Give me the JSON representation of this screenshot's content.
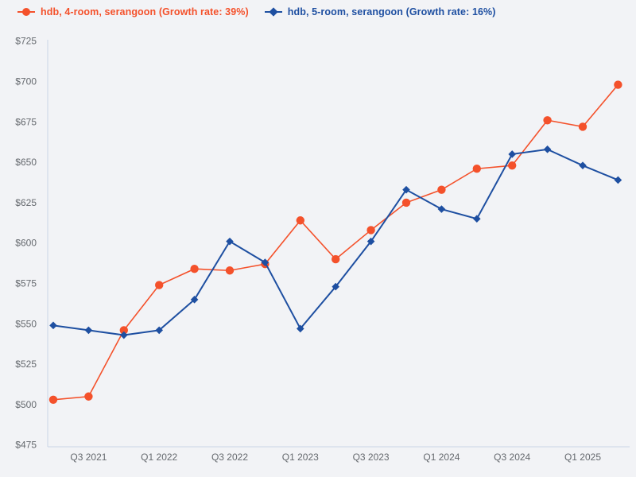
{
  "legend": [
    {
      "label": "hdb, 4-room, serangoon (Growth rate: 39%)",
      "color": "#f4512b",
      "marker": "circle"
    },
    {
      "label": "hdb, 5-room, serangoon (Growth rate: 16%)",
      "color": "#1e4fa1",
      "marker": "diamond"
    }
  ],
  "chart_data": {
    "type": "line",
    "x": [
      "Q2 2021",
      "Q3 2021",
      "Q4 2021",
      "Q1 2022",
      "Q2 2022",
      "Q3 2022",
      "Q4 2022",
      "Q1 2023",
      "Q2 2023",
      "Q3 2023",
      "Q4 2023",
      "Q1 2024",
      "Q2 2024",
      "Q3 2024",
      "Q4 2024",
      "Q1 2025",
      "Q2 2025"
    ],
    "series": [
      {
        "id": "4-room",
        "name": "hdb, 4-room, serangoon",
        "growth_rate": "39%",
        "color": "#f4512b",
        "marker": "circle",
        "line_width": 1.6,
        "values": [
          503,
          505,
          546,
          574,
          584,
          583,
          587,
          614,
          590,
          608,
          625,
          633,
          646,
          648,
          676,
          672,
          698
        ]
      },
      {
        "id": "5-room",
        "name": "hdb, 5-room, serangoon",
        "growth_rate": "16%",
        "color": "#1e4fa1",
        "marker": "diamond",
        "line_width": 2,
        "values": [
          549,
          546,
          543,
          546,
          565,
          601,
          588,
          547,
          573,
          601,
          633,
          621,
          615,
          655,
          658,
          648,
          639
        ]
      }
    ],
    "title": "",
    "xlabel": "",
    "ylabel": "",
    "y_tick_prefix": "$",
    "ylim": [
      475,
      725
    ],
    "ytick_step": 25,
    "ytick_labels": [
      "$475",
      "$500",
      "$525",
      "$550",
      "$575",
      "$600",
      "$625",
      "$650",
      "$675",
      "$700",
      "$725"
    ],
    "xtick_labels": [
      "Q3 2021",
      "Q1 2022",
      "Q3 2022",
      "Q1 2023",
      "Q3 2023",
      "Q1 2024",
      "Q3 2024",
      "Q1 2025"
    ],
    "xtick_indices": [
      1,
      3,
      5,
      7,
      9,
      11,
      13,
      15
    ],
    "grid": false,
    "legend_position": "top-left"
  },
  "colors": {
    "background": "#f2f3f6",
    "axis_line": "#c9d4e6",
    "tick_text": "#65696e"
  }
}
